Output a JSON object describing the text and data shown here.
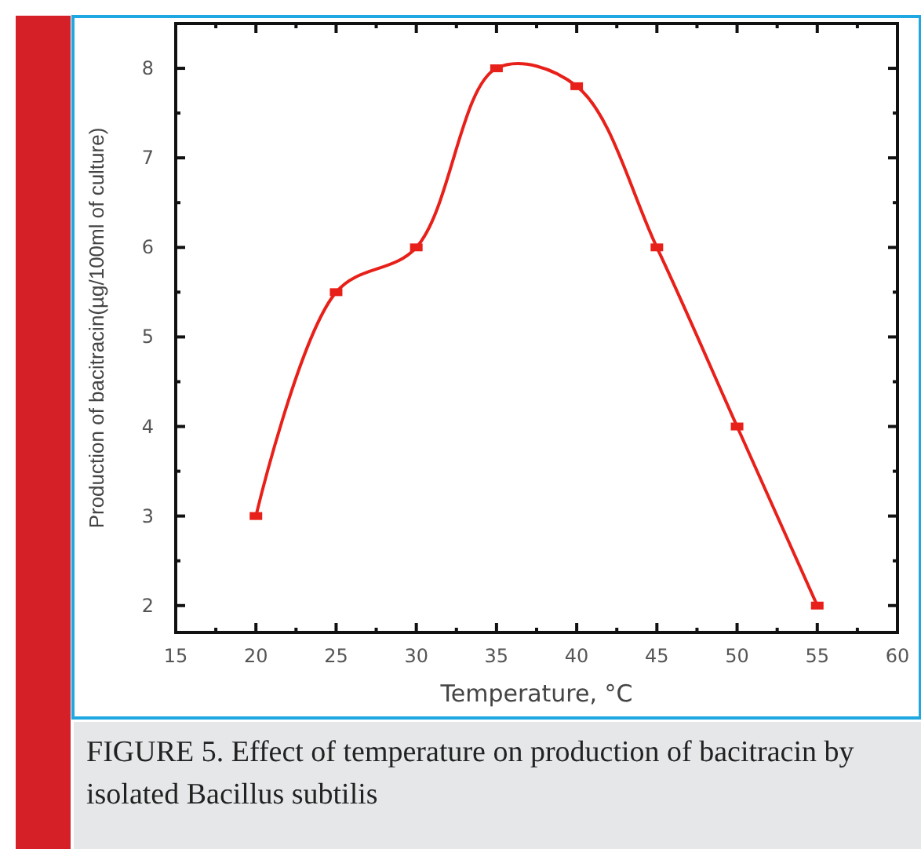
{
  "chart_data": {
    "type": "line",
    "xlabel": "Temperature, °C",
    "ylabel": "Production of bacitracin(µg/100ml of culture)",
    "x": [
      20,
      25,
      30,
      35,
      40,
      45,
      50,
      55
    ],
    "series": [
      {
        "color": "#e8201a",
        "values": [
          3,
          5.5,
          6,
          8,
          7.8,
          6,
          4,
          2
        ]
      }
    ],
    "xlim": [
      15,
      60
    ],
    "xticks": [
      15,
      {
        "value": 17.5,
        "label": null
      },
      20,
      {
        "value": 22.5,
        "label": null
      },
      25,
      {
        "value": 27.5,
        "label": null
      },
      30,
      {
        "value": 32.5,
        "label": null
      },
      35,
      {
        "value": 37.5,
        "label": null
      },
      40,
      {
        "value": 42.5,
        "label": null
      },
      45,
      {
        "value": 47.5,
        "label": null
      },
      50,
      {
        "value": 52.5,
        "label": null
      },
      55,
      {
        "value": 57.5,
        "label": null
      },
      60
    ],
    "ylim": [
      1.7,
      8.5
    ],
    "yticks": [
      2,
      {
        "value": 2.5,
        "label": null
      },
      3,
      {
        "value": 3.5,
        "label": null
      },
      4,
      {
        "value": 4.5,
        "label": null
      },
      5,
      {
        "value": 5.5,
        "label": null
      },
      6,
      {
        "value": 6.5,
        "label": null
      },
      7,
      {
        "value": 7.5,
        "label": null
      },
      8
    ],
    "marker": "square",
    "line_style": "solid",
    "grid": false,
    "annotations": [
      "FIGURE 5. Effect of temperature on production of bacitracin by isolated Bacillus subtilis"
    ]
  }
}
